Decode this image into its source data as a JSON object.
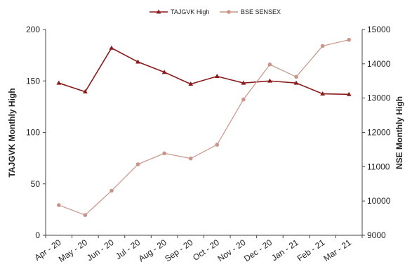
{
  "chart_data": {
    "type": "line",
    "categories": [
      "Apr - 20",
      "May - 20",
      "Jun - 20",
      "Jul - 20",
      "Aug - 20",
      "Sep - 20",
      "Oct - 20",
      "Nov - 20",
      "Dec - 20",
      "Jan - 21",
      "Feb - 21",
      "Mar - 21"
    ],
    "series": [
      {
        "name": "TAJGVK High",
        "axis": "left",
        "color": "#8b1a1a",
        "marker": "triangle",
        "values": [
          148,
          139.5,
          182,
          168.5,
          158.5,
          147,
          154.5,
          148,
          150,
          148,
          137.5,
          137
        ]
      },
      {
        "name": "BSE SENSEX",
        "axis": "right",
        "color": "#c9958a",
        "marker": "circle",
        "values": [
          9880,
          9590,
          10300,
          11070,
          11390,
          11240,
          11640,
          12960,
          13980,
          13620,
          14520,
          14700
        ]
      }
    ],
    "ylabel": "TAJGVK Monthly High",
    "y2label": "NSE Monthly High",
    "ylim": [
      0,
      200
    ],
    "yticks": [
      "0",
      "50",
      "100",
      "150",
      "200"
    ],
    "y2lim": [
      9000,
      15000
    ],
    "y2ticks": [
      "9000",
      "10000",
      "11000",
      "12000",
      "13000",
      "14000",
      "15000"
    ],
    "legend_position": "top-center",
    "grid": false
  }
}
